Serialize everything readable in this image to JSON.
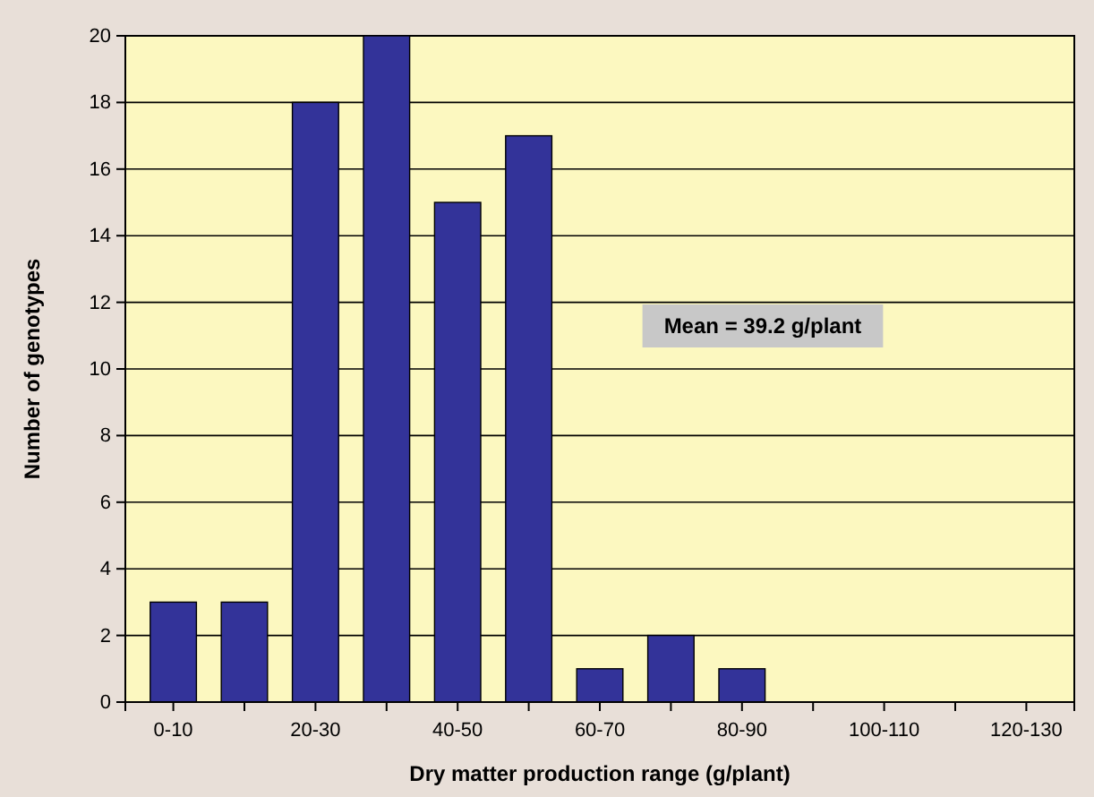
{
  "chart_data": {
    "type": "bar",
    "categories": [
      "0-10",
      null,
      "20-30",
      null,
      "40-50",
      null,
      "60-70",
      null,
      "80-90",
      null,
      "100-110",
      null,
      "120-130"
    ],
    "values": [
      3,
      3,
      18,
      20,
      15,
      17,
      1,
      2,
      1,
      0,
      0,
      0,
      0
    ],
    "color": "#333399",
    "xlabel": "Dry matter production range (g/plant)",
    "ylabel": "Number of genotypes",
    "ylim": [
      0,
      20
    ],
    "yticks": [
      0,
      2,
      4,
      6,
      8,
      10,
      12,
      14,
      16,
      18,
      20
    ],
    "grid": "y",
    "annotations": [
      "Mean = 39.2  g/plant"
    ]
  }
}
